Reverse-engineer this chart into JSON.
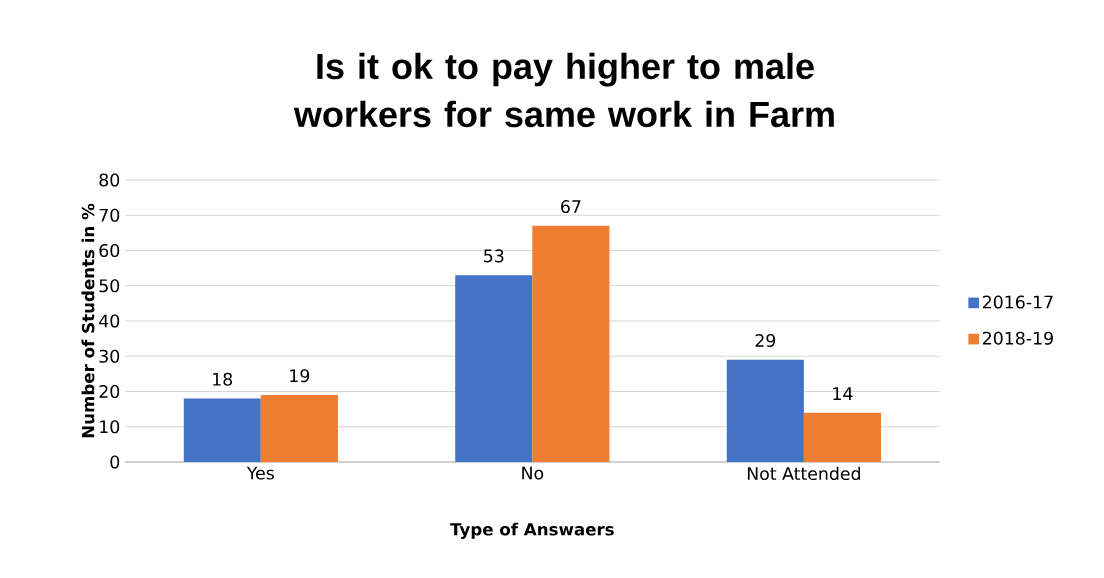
{
  "chart_data": {
    "type": "bar",
    "title": "Is it ok to pay higher to male workers for same work in Farm",
    "xlabel": "Type of Answaers",
    "ylabel": "Number of Students in %",
    "categories": [
      "Yes",
      "No",
      "Not Attended"
    ],
    "series": [
      {
        "name": "2016-17",
        "color": "#4472c4",
        "values": [
          18,
          53,
          29
        ]
      },
      {
        "name": "2018-19",
        "color": "#ed7d31",
        "values": [
          19,
          67,
          14
        ]
      }
    ],
    "ylim": [
      0,
      80
    ],
    "yticks": [
      0,
      10,
      20,
      30,
      40,
      50,
      60,
      70,
      80
    ],
    "grid": "y",
    "legend": "right",
    "data_labels": true
  }
}
